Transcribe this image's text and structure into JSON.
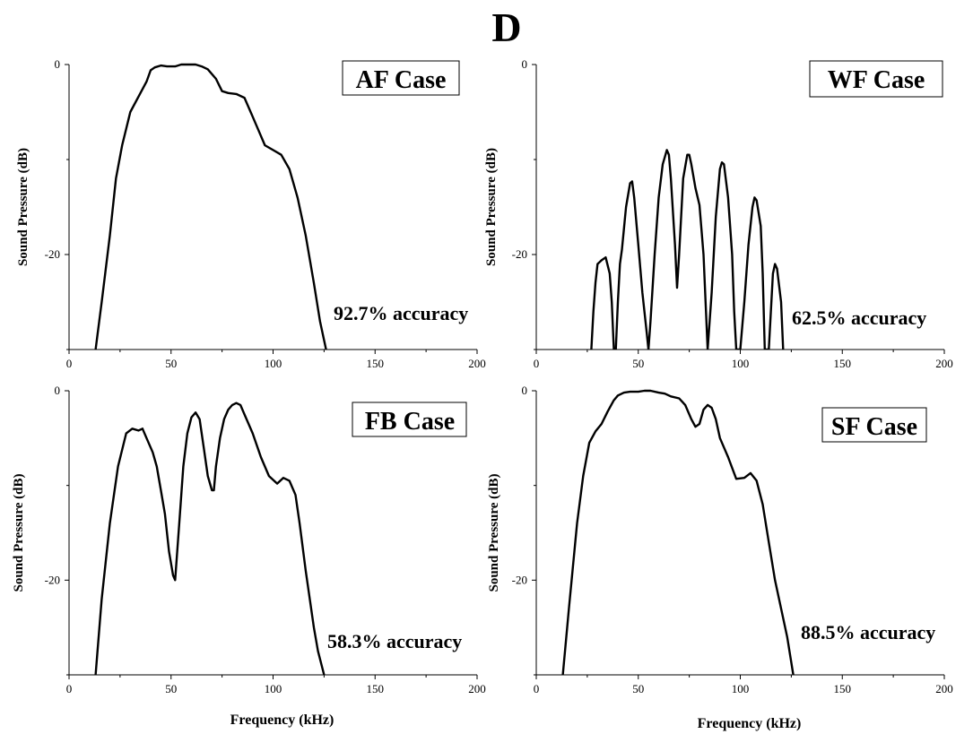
{
  "figure_label": "D",
  "chart_data": [
    {
      "type": "line",
      "title": "AF Case",
      "annotation": "92.7% accuracy",
      "xlabel": "",
      "ylabel": "Sound Pressure (dB)",
      "xlim": [
        0,
        200
      ],
      "ylim": [
        -30,
        0
      ],
      "x_ticks": [
        "0",
        "50",
        "100",
        "150",
        "200"
      ],
      "y_ticks": [
        "0",
        "-20"
      ],
      "series": [
        {
          "x": [
            13,
            16,
            20,
            23,
            26,
            30,
            35,
            38,
            40,
            42,
            45,
            48,
            52,
            55,
            58,
            62,
            65,
            68,
            72,
            75,
            78,
            82,
            86,
            90,
            93,
            96,
            100,
            104,
            108,
            112,
            116,
            120,
            123,
            126
          ],
          "y": [
            -30,
            -25,
            -18,
            -12,
            -8.5,
            -5,
            -3,
            -1.8,
            -0.6,
            -0.3,
            -0.1,
            -0.2,
            -0.2,
            0,
            0,
            0,
            -0.2,
            -0.5,
            -1.5,
            -2.8,
            -3.0,
            -3.1,
            -3.5,
            -5.5,
            -7.0,
            -8.5,
            -9.0,
            -9.5,
            -11,
            -14,
            -18,
            -23,
            -27,
            -30
          ]
        }
      ]
    },
    {
      "type": "line",
      "title": "WF Case",
      "annotation": "62.5% accuracy",
      "xlabel": "",
      "ylabel": "Sound Pressure (dB)",
      "xlim": [
        0,
        200
      ],
      "ylim": [
        -30,
        0
      ],
      "x_ticks": [
        "0",
        "50",
        "100",
        "150",
        "200"
      ],
      "y_ticks": [
        "0",
        "-20"
      ],
      "series": [
        {
          "x": [
            27,
            28,
            29,
            30,
            32,
            34,
            36,
            37,
            38,
            39,
            40,
            41,
            42,
            44,
            46,
            47,
            48,
            50,
            52,
            54,
            55,
            56,
            58,
            60,
            62,
            64,
            65,
            66,
            68,
            69,
            70,
            72,
            74,
            75,
            76,
            78,
            80,
            82,
            83,
            84,
            86,
            88,
            90,
            91,
            92,
            94,
            96,
            97,
            98,
            100,
            102,
            104,
            106,
            107,
            108,
            110,
            111,
            112,
            114,
            116,
            117,
            118,
            120,
            121
          ],
          "y": [
            -30,
            -26,
            -23,
            -21,
            -20.6,
            -20.3,
            -22,
            -25,
            -30,
            -30,
            -25,
            -21,
            -19.5,
            -15,
            -12.5,
            -12.3,
            -14,
            -19,
            -24,
            -28,
            -30,
            -27,
            -20,
            -14,
            -10.5,
            -9,
            -9.5,
            -12,
            -19,
            -23.5,
            -20,
            -12,
            -9.5,
            -9.5,
            -10.5,
            -13,
            -14.8,
            -20,
            -25,
            -30,
            -24,
            -16,
            -11,
            -10.3,
            -10.5,
            -14,
            -20,
            -26,
            -30,
            -30,
            -25,
            -19,
            -15,
            -14,
            -14.3,
            -17,
            -22,
            -30,
            -30,
            -22,
            -21,
            -21.5,
            -25,
            -30
          ]
        }
      ]
    },
    {
      "type": "line",
      "title": "FB Case",
      "annotation": "58.3% accuracy",
      "xlabel": "Frequency (kHz)",
      "ylabel": "Sound Pressure (dB)",
      "xlim": [
        0,
        200
      ],
      "ylim": [
        -30,
        0
      ],
      "x_ticks": [
        "0",
        "50",
        "100",
        "150",
        "200"
      ],
      "y_ticks": [
        "0",
        "-20"
      ],
      "series": [
        {
          "x": [
            13,
            16,
            20,
            24,
            28,
            31,
            34,
            36,
            38,
            41,
            43,
            45,
            47,
            49,
            51,
            52,
            54,
            56,
            58,
            60,
            62,
            64,
            66,
            68,
            70,
            71,
            72,
            74,
            76,
            78,
            80,
            82,
            84,
            86,
            88,
            90,
            94,
            98,
            102,
            105,
            108,
            111,
            113,
            116,
            120,
            122,
            125
          ],
          "y": [
            -30,
            -22,
            -14,
            -8,
            -4.5,
            -4,
            -4.2,
            -4.0,
            -5,
            -6.5,
            -8,
            -10.5,
            -13,
            -17,
            -19.5,
            -20,
            -14,
            -8,
            -4.5,
            -2.8,
            -2.3,
            -3,
            -6,
            -9,
            -10.5,
            -10.5,
            -8,
            -5,
            -3,
            -2,
            -1.5,
            -1.3,
            -1.5,
            -2.5,
            -3.5,
            -4.5,
            -7,
            -9,
            -9.8,
            -9.2,
            -9.5,
            -11,
            -14,
            -19,
            -25,
            -27.5,
            -30
          ]
        }
      ]
    },
    {
      "type": "line",
      "title": "SF Case",
      "annotation": "88.5% accuracy",
      "xlabel": "Frequency (kHz)",
      "ylabel": "Sound Pressure (dB)",
      "xlim": [
        0,
        200
      ],
      "ylim": [
        -30,
        0
      ],
      "x_ticks": [
        "0",
        "50",
        "100",
        "150",
        "200"
      ],
      "y_ticks": [
        "0",
        "-20"
      ],
      "series": [
        {
          "x": [
            13,
            16,
            20,
            23,
            26,
            29,
            32,
            35,
            38,
            40,
            43,
            46,
            50,
            53,
            56,
            60,
            63,
            66,
            70,
            73,
            76,
            78,
            80,
            82,
            84,
            86,
            88,
            90,
            94,
            98,
            102,
            105,
            108,
            111,
            114,
            117,
            120,
            123,
            126
          ],
          "y": [
            -30,
            -23,
            -14,
            -9,
            -5.5,
            -4.3,
            -3.5,
            -2.2,
            -1,
            -0.5,
            -0.2,
            -0.1,
            -0.1,
            0,
            0,
            -0.2,
            -0.3,
            -0.6,
            -0.8,
            -1.5,
            -3,
            -3.8,
            -3.5,
            -2,
            -1.5,
            -1.8,
            -3,
            -5,
            -7,
            -9.3,
            -9.2,
            -8.7,
            -9.5,
            -12,
            -16,
            -20,
            -23,
            -26,
            -30
          ]
        }
      ]
    }
  ]
}
